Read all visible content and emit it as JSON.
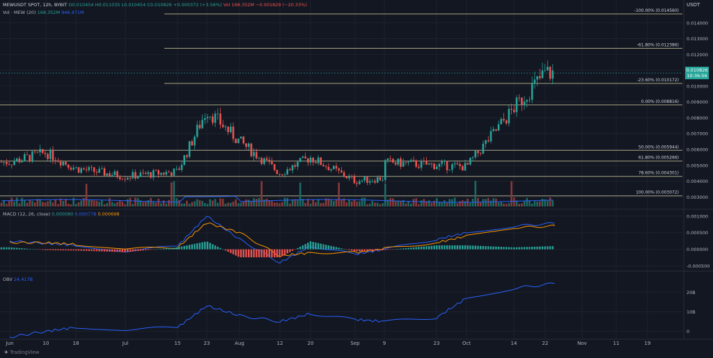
{
  "header": {
    "symbol": "MEWUSDT SPOT, 12h, BYBIT",
    "ohlc": {
      "o": "O0.010454",
      "h": "H0.011035",
      "l": "L0.010454",
      "c": "C0.010826",
      "chg": "+0.000372 (+3.56%)"
    },
    "vol_label": "Vol · MEW (20)",
    "vol_values": [
      "168.352M",
      "946.971M"
    ],
    "vol2": "Vol 168.352M",
    "vol2_chg": "−0.001829 (−20.33%)"
  },
  "currency": "USDT",
  "last_price": "0.010826",
  "countdown": "10:36:56",
  "macd_label": "MACD (12, 26, close)",
  "macd_values": [
    "0.000080",
    "0.000778",
    "0.000698"
  ],
  "obv_label": "OBV",
  "obv_value": "24.417B",
  "watermark": "TradingView",
  "colors": {
    "up": "#26a69a",
    "down": "#ef5350",
    "fib": "#a8a583",
    "macd": "#2962ff",
    "signal": "#ff9800",
    "obv": "#2962ff"
  },
  "chart_data": [
    {
      "type": "candlestick",
      "title": "MEWUSDT SPOT, 12h, BYBIT",
      "y_axis_labels": [
        "0.014000",
        "0.013000",
        "0.012000",
        "0.011000",
        "0.010000",
        "0.009000",
        "0.008000",
        "0.007000",
        "0.006000",
        "0.005000",
        "0.004000",
        "0.003000"
      ],
      "ylim": [
        0.0024,
        0.015
      ],
      "x_ticks": [
        "Jun",
        "10",
        "18",
        "Jul",
        "15",
        "23",
        "Aug",
        "12",
        "20",
        "Sep",
        "9",
        "23",
        "Oct",
        "14",
        "22",
        "Nov",
        "11",
        "19"
      ],
      "fib_levels": [
        {
          "label": "-100.00% (0.014560)",
          "value": 0.01456
        },
        {
          "label": "-61.80% (0.012386)",
          "value": 0.012386
        },
        {
          "label": "-23.60% (0.010172)",
          "value": 0.010172
        },
        {
          "label": "0.00% (0.008816)",
          "value": 0.008816
        },
        {
          "label": "50.00% (0.005944)",
          "value": 0.005944
        },
        {
          "label": "61.80% (0.005266)",
          "value": 0.005266
        },
        {
          "label": "78.60% (0.004301)",
          "value": 0.004301
        },
        {
          "label": "100.00% (0.003072)",
          "value": 0.003072
        }
      ],
      "close_path": [
        [
          "Jun",
          0.0052
        ],
        [
          "10",
          0.0058
        ],
        [
          "18",
          0.0048
        ],
        [
          "Jul",
          0.0043
        ],
        [
          "15",
          0.0046
        ],
        [
          "23",
          0.0085
        ],
        [
          "Aug",
          0.0065
        ],
        [
          "12",
          0.0045
        ],
        [
          "20",
          0.0055
        ],
        [
          "Sep",
          0.004
        ],
        [
          "9",
          0.0042
        ],
        [
          "23",
          0.0058
        ],
        [
          "Oct",
          0.0049
        ],
        [
          "14",
          0.0086
        ],
        [
          "22",
          0.01083
        ]
      ]
    },
    {
      "type": "line",
      "title": "MACD (12, 26, close)",
      "y_axis_labels": [
        "0.001000",
        "0.000500",
        "0.000000",
        "-0.000500"
      ],
      "ylim": [
        -0.00055,
        0.0011
      ],
      "series": [
        {
          "name": "MACD",
          "values": [
            0.00025,
            0.00018,
            0.00012,
            -5e-05,
            0.0001,
            0.001,
            0.0003,
            -0.0004,
            0.0001,
            -0.00015,
            0.0,
            0.0003,
            0.0005,
            0.0007,
            0.00078
          ]
        },
        {
          "name": "Signal",
          "values": [
            0.0002,
            0.0002,
            0.00015,
            2e-05,
            5e-05,
            0.0008,
            0.0005,
            -0.0002,
            -0.0001,
            -0.0001,
            2e-05,
            0.0002,
            0.0004,
            0.00065,
            0.0007
          ]
        }
      ]
    },
    {
      "type": "line",
      "title": "OBV",
      "y_axis_labels": [
        "20B",
        "10B",
        "0"
      ],
      "ylim": [
        -3,
        29
      ],
      "series": [
        {
          "name": "OBV",
          "values": [
            -3,
            0,
            2,
            1,
            2,
            13,
            8,
            5,
            9,
            6,
            5,
            7,
            17,
            22,
            24.4
          ]
        }
      ]
    }
  ]
}
